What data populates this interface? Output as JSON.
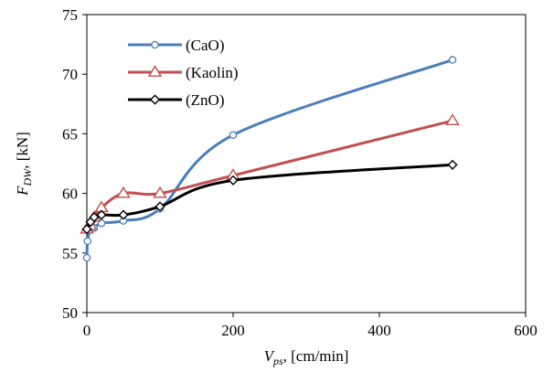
{
  "chart_data": {
    "type": "line",
    "xlabel": {
      "symbol": "V",
      "subscript": "ps",
      "rest": ", [cm/min]"
    },
    "ylabel": {
      "symbol": "F",
      "subscript": "DW",
      "rest": ", [kN]"
    },
    "xlim": [
      0,
      600
    ],
    "ylim": [
      50,
      75
    ],
    "xticks": [
      "0",
      "200",
      "400",
      "600"
    ],
    "yticks": [
      "50",
      "55",
      "60",
      "65",
      "70",
      "75"
    ],
    "grid": false,
    "legend_position": "top-left",
    "series": [
      {
        "name": "(CaO)",
        "color": "#4a7ebb",
        "marker": "circle",
        "x": [
          0,
          1,
          5,
          10,
          20,
          50,
          100,
          200,
          500
        ],
        "y": [
          54.6,
          56.0,
          57.0,
          57.1,
          57.5,
          57.7,
          58.7,
          64.9,
          71.2
        ]
      },
      {
        "name": "(Kaolin)",
        "color": "#c0504d",
        "marker": "triangle",
        "x": [
          0,
          5,
          10,
          20,
          50,
          100,
          200,
          500
        ],
        "y": [
          57.0,
          57.3,
          58.0,
          58.8,
          60.0,
          60.0,
          61.5,
          66.1
        ]
      },
      {
        "name": "(ZnO)",
        "color": "#000000",
        "marker": "diamond",
        "x": [
          0,
          5,
          10,
          20,
          50,
          100,
          200,
          500
        ],
        "y": [
          57.0,
          57.6,
          58.0,
          58.2,
          58.2,
          58.9,
          61.1,
          62.4
        ]
      }
    ]
  }
}
